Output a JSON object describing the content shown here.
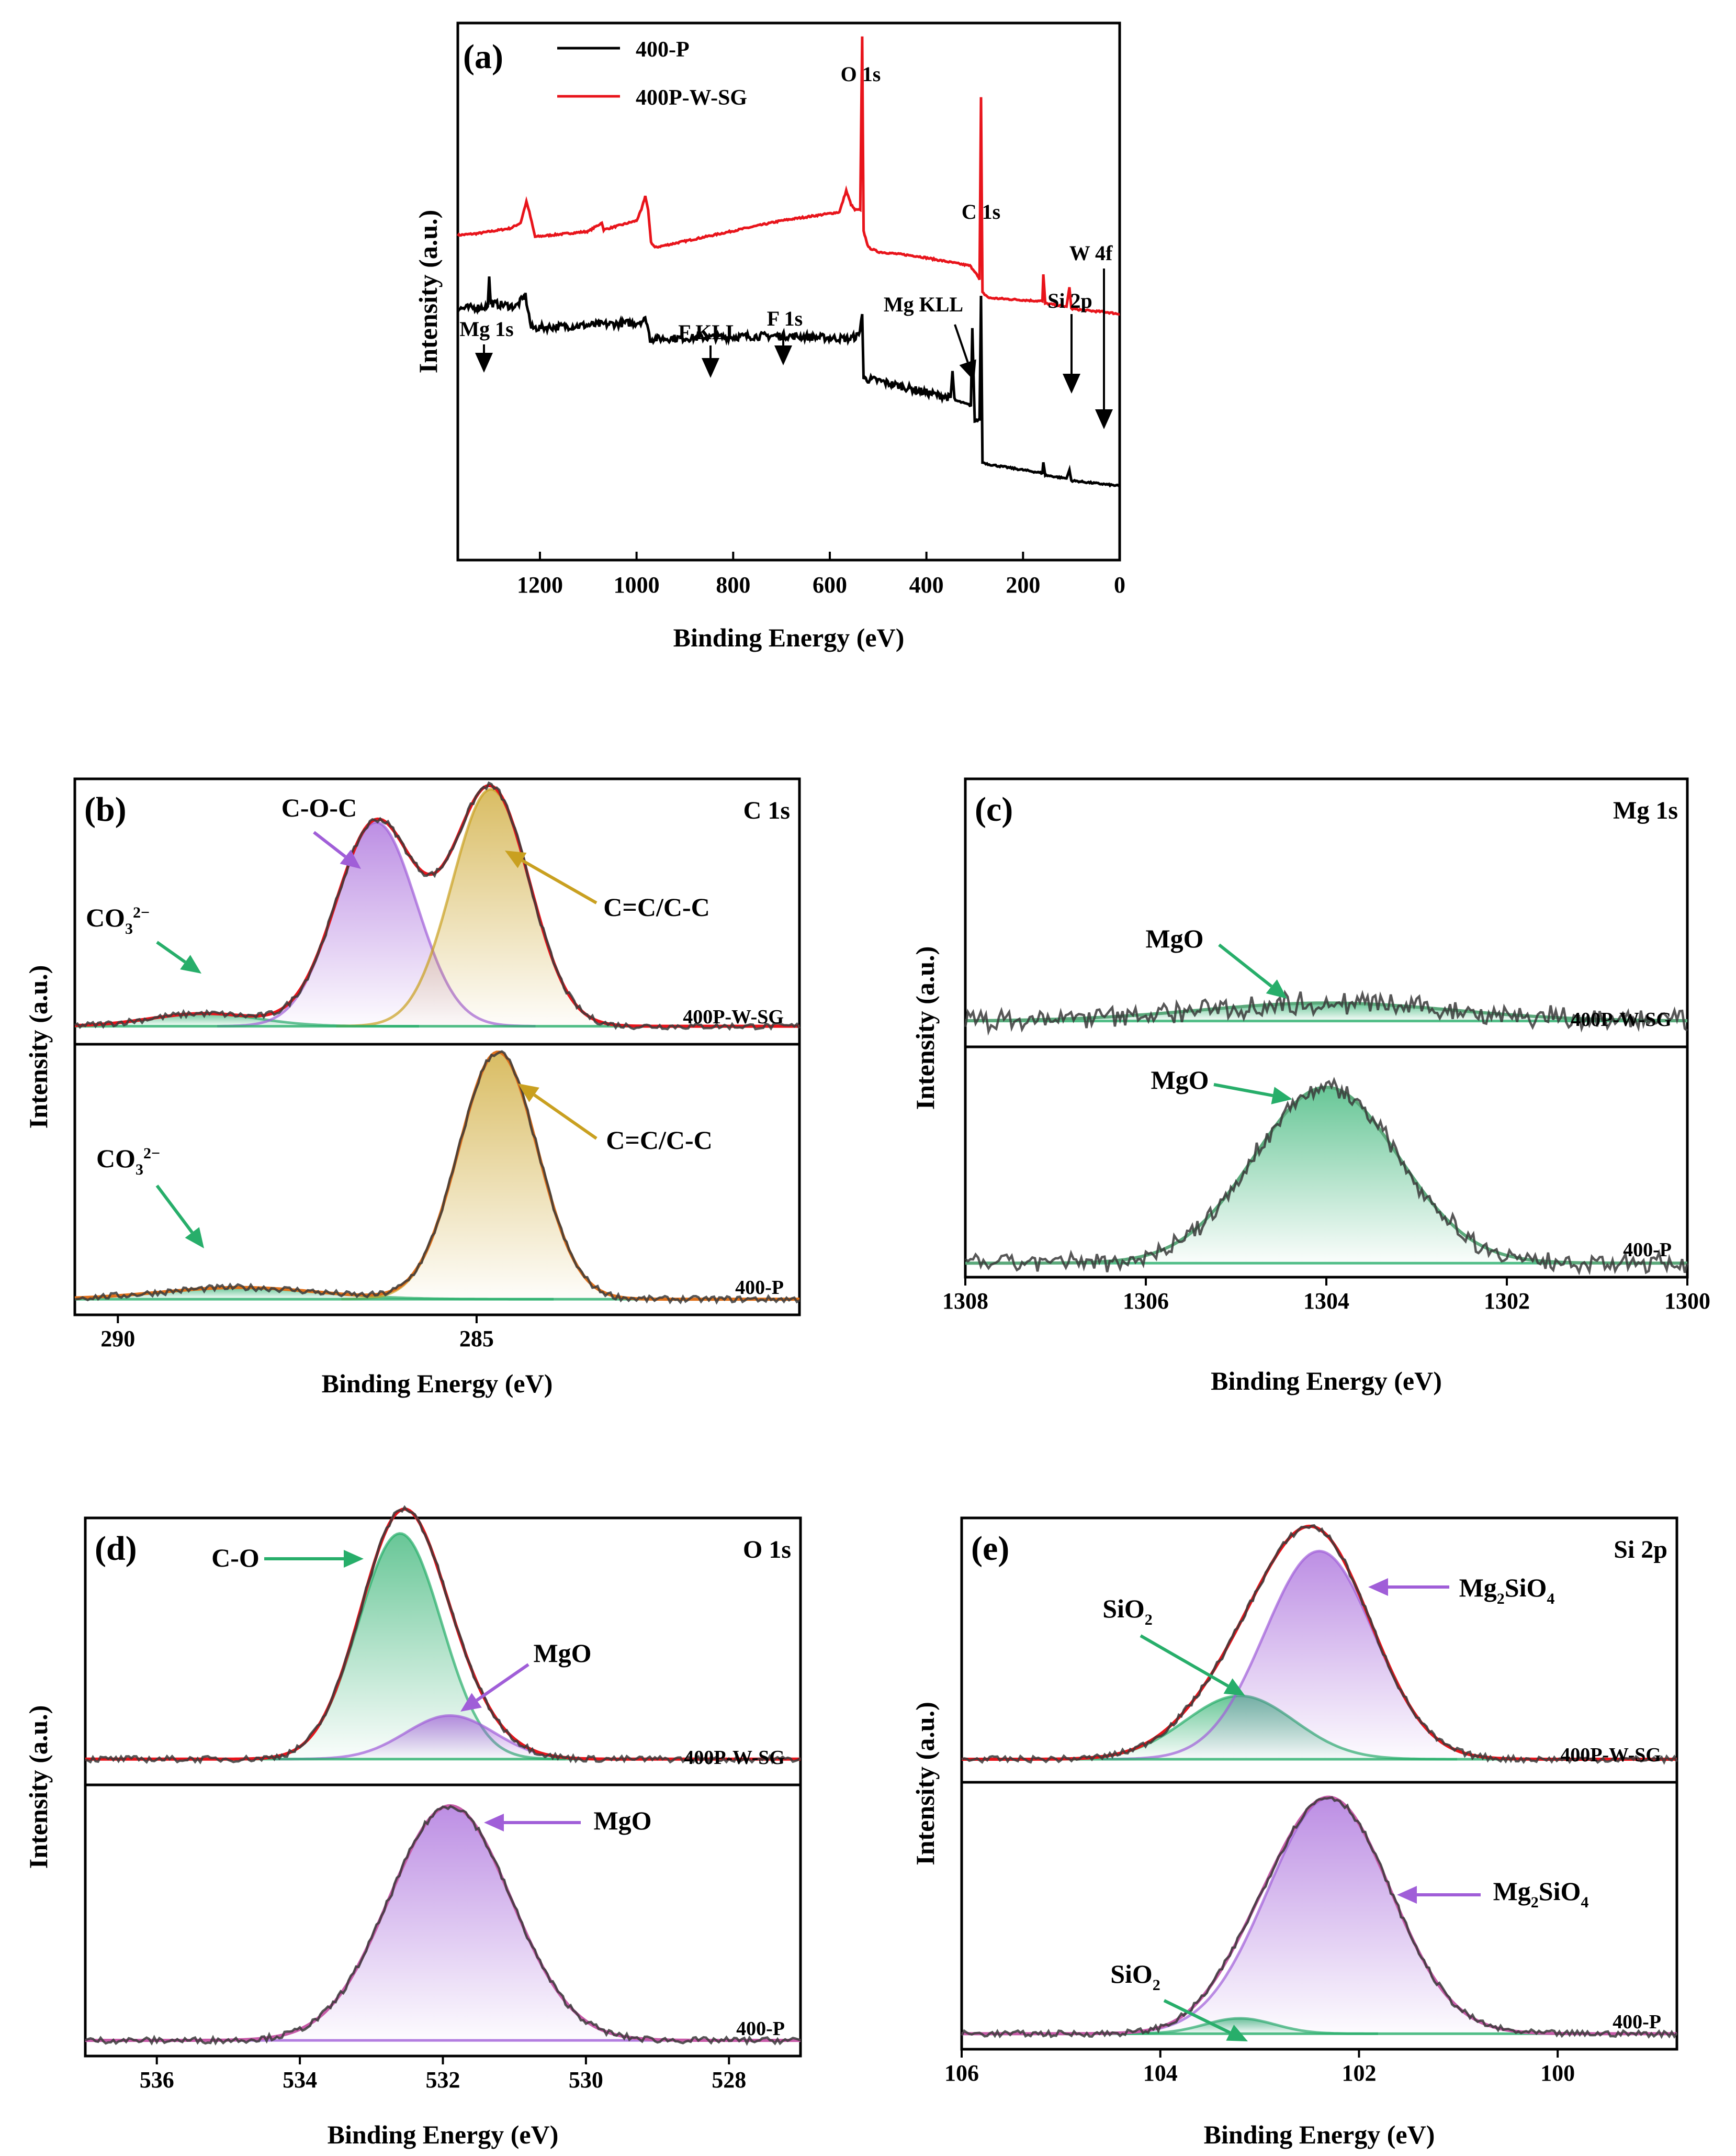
{
  "chart_data": [
    {
      "id": "a",
      "type": "line",
      "panel_label": "(a)",
      "xlabel": "Binding Energy (eV)",
      "ylabel": "Intensity (a.u.)",
      "xlim": [
        1370,
        0
      ],
      "xticks": [
        1200,
        1000,
        800,
        600,
        400,
        200,
        0
      ],
      "legend": [
        {
          "name": "400-P",
          "color": "#000000"
        },
        {
          "name": "400P-W-SG",
          "color": "#e8141b"
        }
      ],
      "series": [
        {
          "name": "400P-W-SG",
          "color": "#e8141b",
          "points": [
            [
              1370,
              0.605
            ],
            [
              1330,
              0.608
            ],
            [
              1260,
              0.618
            ],
            [
              1240,
              0.628
            ],
            [
              1228,
              0.668
            ],
            [
              1222,
              0.648
            ],
            [
              1210,
              0.602
            ],
            [
              1100,
              0.612
            ],
            [
              1072,
              0.628
            ],
            [
              1068,
              0.615
            ],
            [
              1000,
              0.632
            ],
            [
              990,
              0.652
            ],
            [
              982,
              0.678
            ],
            [
              976,
              0.652
            ],
            [
              970,
              0.592
            ],
            [
              962,
              0.582
            ],
            [
              700,
              0.632
            ],
            [
              580,
              0.648
            ],
            [
              566,
              0.688
            ],
            [
              556,
              0.662
            ],
            [
              548,
              0.652
            ],
            [
              537,
              0.652
            ],
            [
              533,
              0.975
            ],
            [
              530,
              0.612
            ],
            [
              520,
              0.582
            ],
            [
              500,
              0.574
            ],
            [
              420,
              0.566
            ],
            [
              310,
              0.548
            ],
            [
              300,
              0.538
            ],
            [
              290,
              0.522
            ],
            [
              287,
              0.862
            ],
            [
              284,
              0.498
            ],
            [
              270,
              0.488
            ],
            [
              160,
              0.482
            ],
            [
              158,
              0.532
            ],
            [
              154,
              0.478
            ],
            [
              110,
              0.472
            ],
            [
              104,
              0.508
            ],
            [
              100,
              0.468
            ],
            [
              60,
              0.464
            ],
            [
              30,
              0.462
            ],
            [
              0,
              0.458
            ]
          ]
        },
        {
          "name": "400-P",
          "color": "#000000",
          "points": [
            [
              1370,
              0.468
            ],
            [
              1308,
              0.472
            ],
            [
              1305,
              0.528
            ],
            [
              1302,
              0.478
            ],
            [
              1250,
              0.472
            ],
            [
              1230,
              0.492
            ],
            [
              1218,
              0.432
            ],
            [
              1000,
              0.442
            ],
            [
              980,
              0.448
            ],
            [
              972,
              0.412
            ],
            [
              700,
              0.418
            ],
            [
              560,
              0.412
            ],
            [
              540,
              0.418
            ],
            [
              533,
              0.458
            ],
            [
              530,
              0.338
            ],
            [
              500,
              0.334
            ],
            [
              400,
              0.312
            ],
            [
              350,
              0.302
            ],
            [
              346,
              0.352
            ],
            [
              342,
              0.298
            ],
            [
              308,
              0.288
            ],
            [
              305,
              0.432
            ],
            [
              300,
              0.258
            ],
            [
              290,
              0.262
            ],
            [
              287,
              0.492
            ],
            [
              284,
              0.182
            ],
            [
              270,
              0.178
            ],
            [
              160,
              0.162
            ],
            [
              158,
              0.182
            ],
            [
              154,
              0.158
            ],
            [
              110,
              0.152
            ],
            [
              104,
              0.168
            ],
            [
              100,
              0.148
            ],
            [
              0,
              0.138
            ]
          ]
        }
      ],
      "annotations": [
        {
          "text": "Mg 1s",
          "x": 1304,
          "arrow": true
        },
        {
          "text": "F KLL",
          "x": 834,
          "arrow": true
        },
        {
          "text": "F 1s",
          "x": 686,
          "arrow": true
        },
        {
          "text": "O 1s",
          "x": 533,
          "arrow": false
        },
        {
          "text": "Mg KLL",
          "x": 306,
          "arrow": true
        },
        {
          "text": "C 1s",
          "x": 285,
          "arrow": false
        },
        {
          "text": "Si 2p",
          "x": 102,
          "arrow": true
        },
        {
          "text": "W 4f",
          "x": 32,
          "arrow": true
        }
      ]
    },
    {
      "id": "b",
      "type": "line",
      "panel_label": "(b)",
      "title": "C 1s",
      "xlabel": "Binding Energy (eV)",
      "ylabel": "Intensity (a.u.)",
      "xlim": [
        290.6,
        280.5
      ],
      "xticks": [
        290,
        285
      ],
      "upper": {
        "sample": "400P-W-SG",
        "baseline": 0.05,
        "components": [
          {
            "name": "CO3",
            "center": 288.8,
            "height": 0.05,
            "sigma": 0.75,
            "color": "#27ae6a"
          },
          {
            "name": "C-O-C",
            "center": 286.4,
            "height": 0.8,
            "sigma": 0.56,
            "color": "#a05ed8"
          },
          {
            "name": "C=C/C-C",
            "center": 284.8,
            "height": 0.93,
            "sigma": 0.54,
            "color": "#c9a020"
          }
        ],
        "labels": [
          {
            "text": "C-O-C",
            "color": "#a05ed8",
            "arrow": true
          },
          {
            "text": "C=C/C-C",
            "color": "#c9a020",
            "arrow": true
          },
          {
            "text": "CO",
            "sub": "3",
            "sup": "2−",
            "color": "#27ae6a",
            "arrow": true
          }
        ]
      },
      "lower": {
        "sample": "400-P",
        "baseline": 0.04,
        "components": [
          {
            "name": "CO3",
            "center": 288.3,
            "height": 0.045,
            "sigma": 1.1,
            "color": "#27ae6a"
          },
          {
            "name": "C=C/C-C",
            "center": 284.7,
            "height": 0.95,
            "sigma": 0.55,
            "color": "#c9a020"
          }
        ],
        "labels": [
          {
            "text": "C=C/C-C",
            "color": "#c9a020",
            "arrow": true
          },
          {
            "text": "CO",
            "sub": "3",
            "sup": "2−",
            "color": "#27ae6a",
            "arrow": true
          }
        ]
      }
    },
    {
      "id": "c",
      "type": "line",
      "panel_label": "(c)",
      "title": "Mg 1s",
      "xlabel": "Binding Energy (eV)",
      "ylabel": "Intensity (a.u.)",
      "xlim": [
        1308,
        1300
      ],
      "xticks": [
        1308,
        1306,
        1304,
        1302,
        1300
      ],
      "upper": {
        "sample": "400P-W-SG",
        "baseline": 0.08,
        "components": [
          {
            "name": "MgO",
            "center": 1304.0,
            "height": 0.07,
            "sigma": 1.4,
            "color": "#27ae6a"
          }
        ],
        "labels": [
          {
            "text": "MgO",
            "color": "#27ae6a",
            "arrow": true
          }
        ]
      },
      "lower": {
        "sample": "400-P",
        "baseline": 0.04,
        "components": [
          {
            "name": "MgO",
            "center": 1304.0,
            "height": 0.8,
            "sigma": 0.8,
            "color": "#27ae6a"
          }
        ],
        "labels": [
          {
            "text": "MgO",
            "color": "#27ae6a",
            "arrow": true
          }
        ]
      }
    },
    {
      "id": "d",
      "type": "line",
      "panel_label": "(d)",
      "title": "O 1s",
      "xlabel": "Binding Energy (eV)",
      "ylabel": "Intensity (a.u.)",
      "xlim": [
        537,
        527
      ],
      "xticks": [
        536,
        534,
        532,
        530,
        528
      ],
      "upper": {
        "sample": "400P-W-SG",
        "baseline": 0.08,
        "components": [
          {
            "name": "C-O",
            "center": 532.6,
            "height": 0.88,
            "sigma": 0.58,
            "color": "#27ae6a"
          },
          {
            "name": "MgO",
            "center": 531.9,
            "height": 0.17,
            "sigma": 0.62,
            "color": "#a05ed8"
          }
        ],
        "labels": [
          {
            "text": "C-O",
            "color": "#27ae6a",
            "arrow": true
          },
          {
            "text": "MgO",
            "color": "#a05ed8",
            "arrow": true
          }
        ]
      },
      "lower": {
        "sample": "400-P",
        "baseline": 0.04,
        "components": [
          {
            "name": "MgO",
            "center": 531.9,
            "height": 0.9,
            "sigma": 0.85,
            "color": "#a05ed8"
          }
        ],
        "labels": [
          {
            "text": "MgO",
            "color": "#a05ed8",
            "arrow": true
          }
        ]
      }
    },
    {
      "id": "e",
      "type": "line",
      "panel_label": "(e)",
      "title": "Si 2p",
      "xlabel": "Binding Energy (eV)",
      "ylabel": "Intensity (a.u.)",
      "xlim": [
        106,
        98.8
      ],
      "xticks": [
        106,
        104,
        102,
        100
      ],
      "upper": {
        "sample": "400P-W-SG",
        "baseline": 0.07,
        "components": [
          {
            "name": "SiO2",
            "center": 103.2,
            "height": 0.25,
            "sigma": 0.55,
            "color": "#27ae6a"
          },
          {
            "name": "Mg2SiO4",
            "center": 102.4,
            "height": 0.82,
            "sigma": 0.55,
            "color": "#a05ed8"
          }
        ],
        "labels": [
          {
            "text": "SiO",
            "sub": "2",
            "color": "#27ae6a",
            "arrow": true
          },
          {
            "text": "Mg",
            "sub": "2",
            "text2": "SiO",
            "sub2": "4",
            "color": "#a05ed8",
            "arrow": true
          }
        ]
      },
      "lower": {
        "sample": "400-P",
        "baseline": 0.04,
        "components": [
          {
            "name": "SiO2",
            "center": 103.2,
            "height": 0.06,
            "sigma": 0.35,
            "color": "#27ae6a"
          },
          {
            "name": "Mg2SiO4",
            "center": 102.3,
            "height": 0.92,
            "sigma": 0.62,
            "color": "#a05ed8"
          }
        ],
        "labels": [
          {
            "text": "SiO",
            "sub": "2",
            "color": "#27ae6a",
            "arrow": true
          },
          {
            "text": "Mg",
            "sub": "2",
            "text2": "SiO",
            "sub2": "4",
            "color": "#a05ed8",
            "arrow": true
          }
        ]
      }
    }
  ]
}
